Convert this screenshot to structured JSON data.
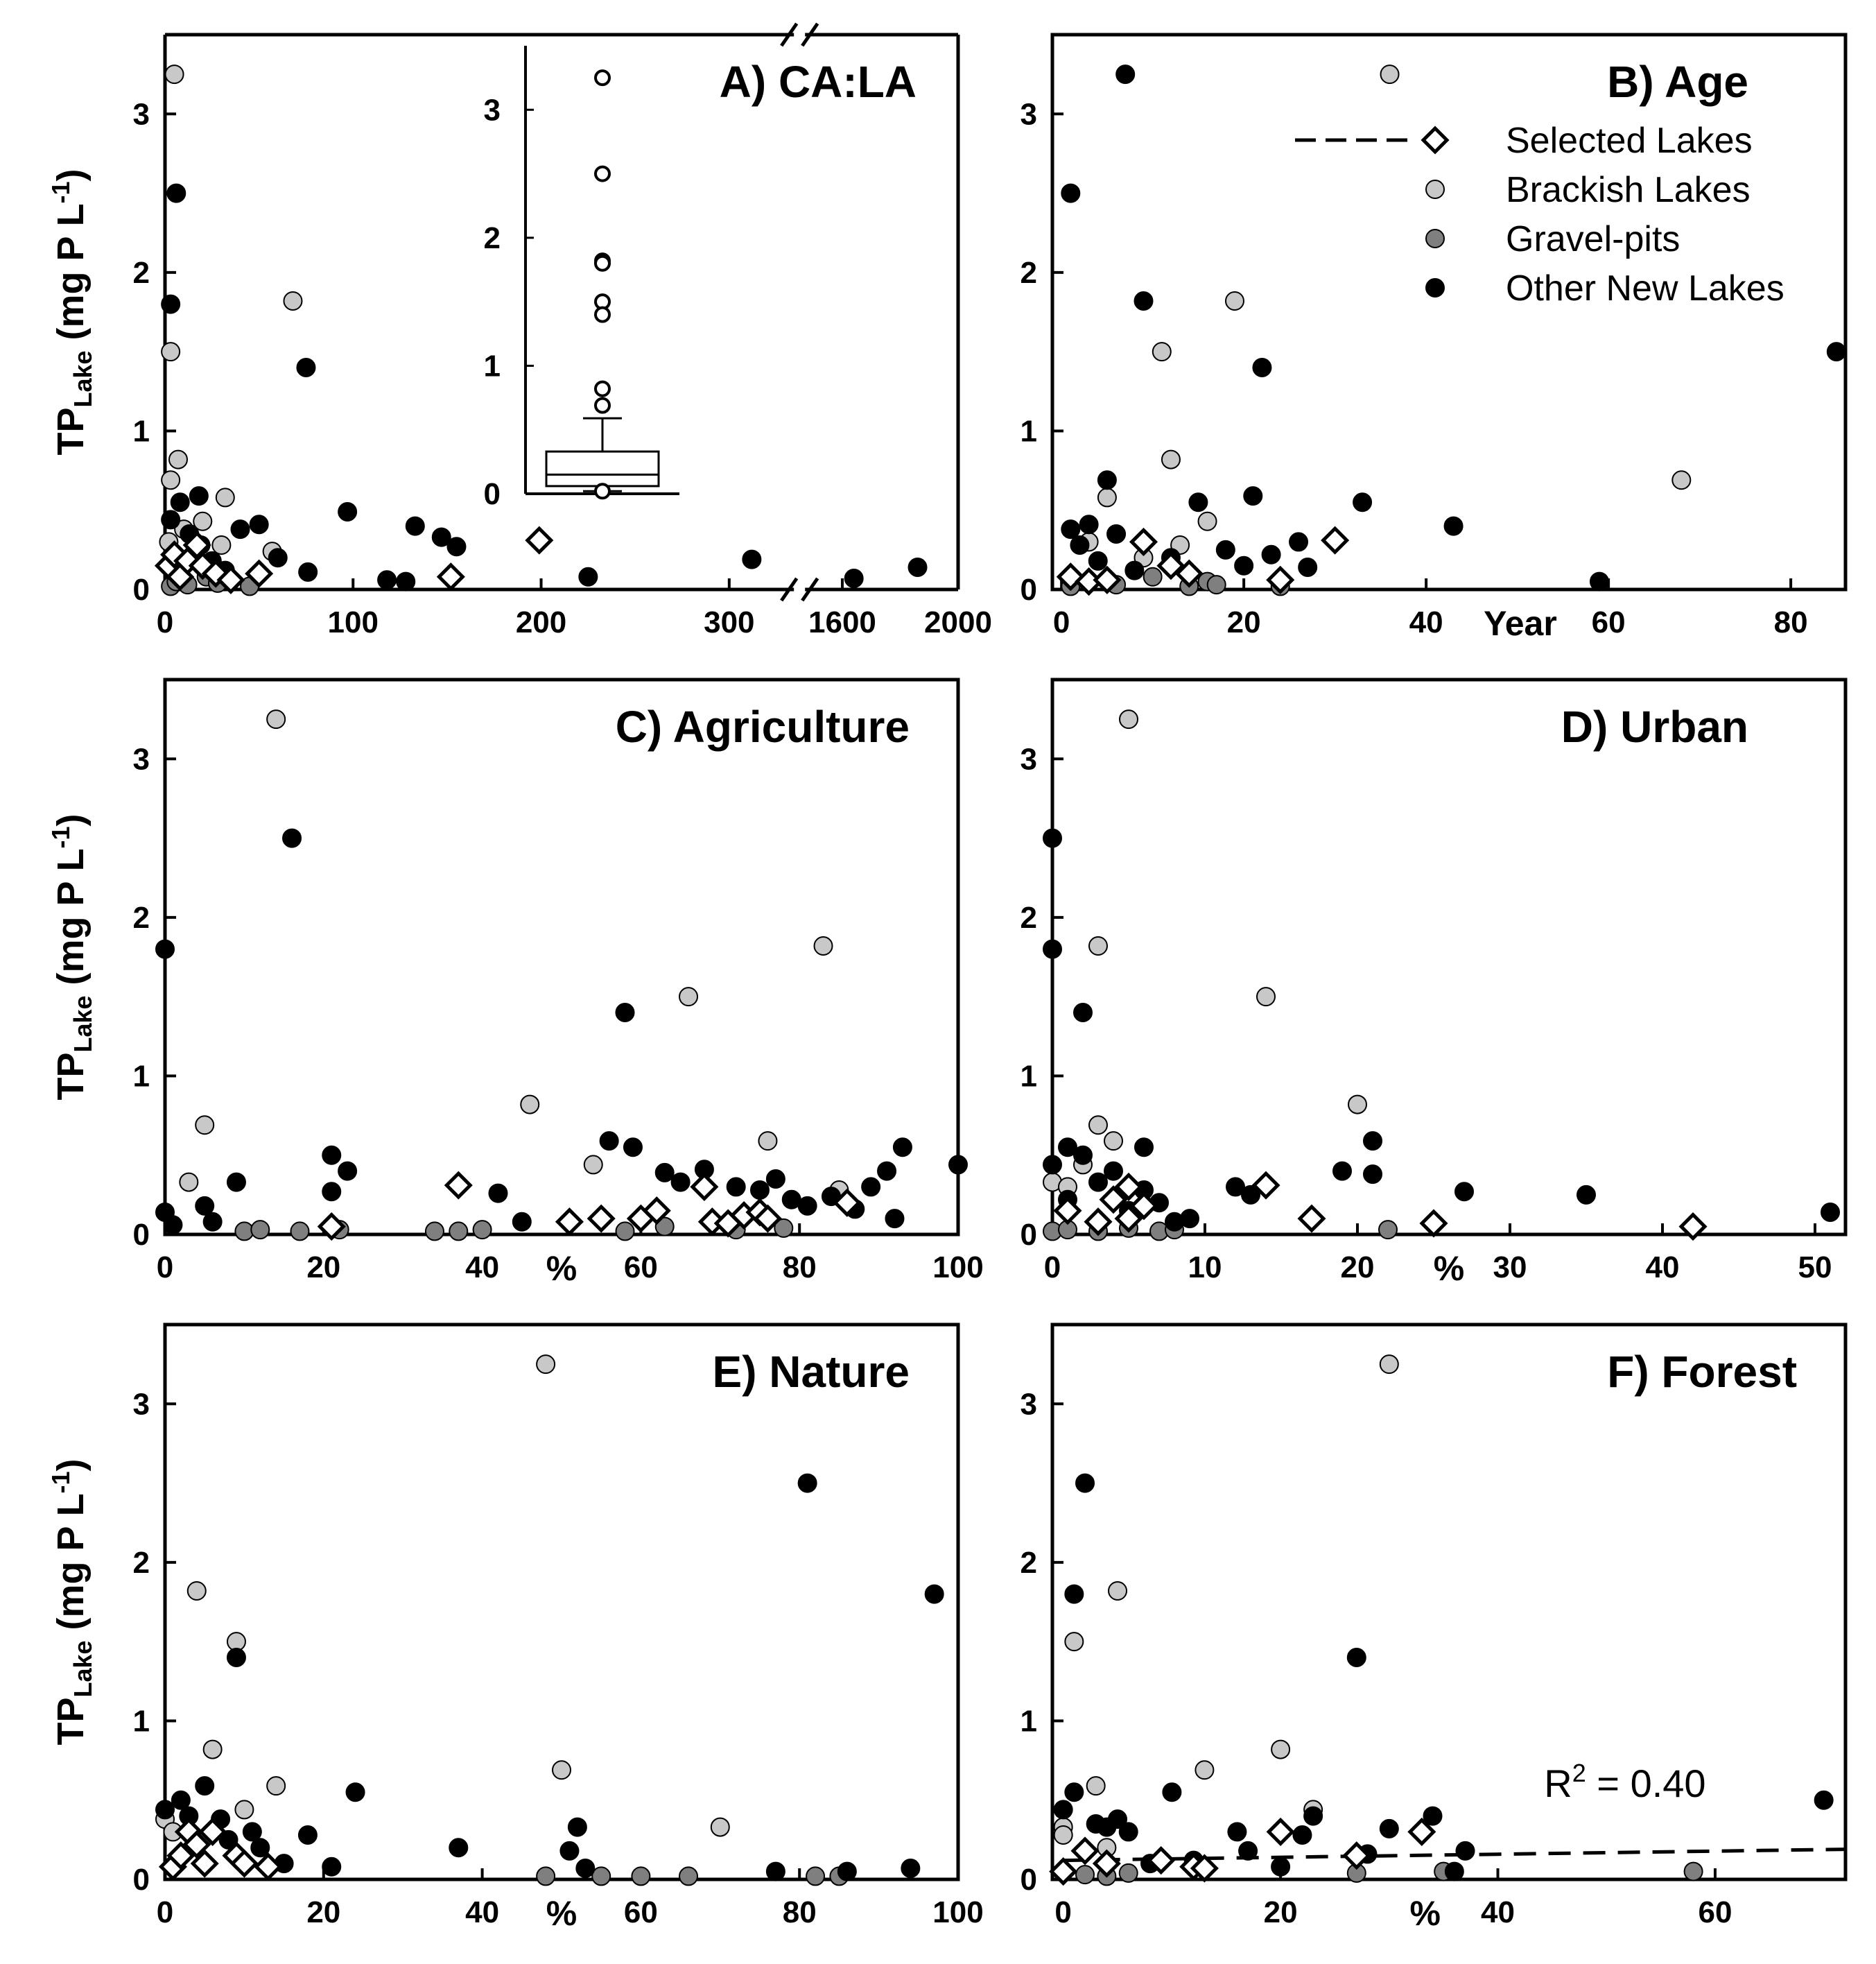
{
  "colors": {
    "selected": "#ffffff",
    "brackish": "#c8c8c8",
    "gravel": "#7f7f7f",
    "other": "#000000"
  },
  "y_axis": {
    "label_main": "TP",
    "label_sub": "Lake",
    "label_unit_open": " (mg P L",
    "label_unit_exp": "-1",
    "label_unit_close": ")",
    "ticks": [
      "0",
      "1",
      "2",
      "3"
    ]
  },
  "legend": {
    "items": [
      {
        "key": "selected",
        "label": "Selected Lakes"
      },
      {
        "key": "brackish",
        "label": "Brackish Lakes"
      },
      {
        "key": "gravel",
        "label": "Gravel-pits"
      },
      {
        "key": "other",
        "label": "Other New Lakes"
      }
    ]
  },
  "chart_data": [
    {
      "id": "A",
      "type": "scatter",
      "title": "A) CA:LA",
      "xlabel": "",
      "ylabel": "TP_Lake (mg P L-1)",
      "ylim": [
        0,
        3.5
      ],
      "x_break": {
        "before": [
          0,
          330
        ],
        "after": [
          1500,
          2000
        ]
      },
      "xticks": [
        0,
        100,
        200,
        300,
        1600,
        2000
      ],
      "xtick_labels": [
        "0",
        "100",
        "200",
        "300",
        "1600",
        "2000"
      ],
      "yticks": [
        0,
        1,
        2,
        3
      ],
      "series": [
        {
          "name": "Brackish Lakes",
          "x": [
            5,
            3,
            3,
            7,
            2,
            68,
            32,
            20,
            10,
            57,
            30
          ],
          "y": [
            3.25,
            1.5,
            0.69,
            0.82,
            0.3,
            1.82,
            0.58,
            0.43,
            0.38,
            0.24,
            0.28
          ]
        },
        {
          "name": "Gravel-pits",
          "x": [
            3,
            6,
            12,
            22,
            28,
            45
          ],
          "y": [
            0.02,
            0.05,
            0.03,
            0.08,
            0.04,
            0.02
          ]
        },
        {
          "name": "Other New Lakes",
          "x": [
            6,
            3,
            75,
            97,
            133,
            147,
            155,
            40,
            50,
            18,
            3,
            8,
            13,
            19,
            60,
            25,
            32,
            76,
            118,
            128,
            225,
            312,
            1640,
            1860
          ],
          "y": [
            2.5,
            1.8,
            1.4,
            0.49,
            0.4,
            0.33,
            0.27,
            0.38,
            0.41,
            0.59,
            0.44,
            0.55,
            0.35,
            0.28,
            0.2,
            0.18,
            0.12,
            0.11,
            0.06,
            0.05,
            0.08,
            0.19,
            0.07,
            0.14
          ]
        },
        {
          "name": "Selected Lakes",
          "x": [
            2,
            5,
            8,
            12,
            17,
            20,
            27,
            35,
            50,
            152,
            199
          ],
          "y": [
            0.15,
            0.22,
            0.08,
            0.18,
            0.28,
            0.15,
            0.1,
            0.06,
            0.1,
            0.08,
            0.31
          ]
        }
      ],
      "inset": {
        "type": "box",
        "yticks": [
          0,
          1,
          2,
          3
        ],
        "q1": 0.06,
        "median": 0.15,
        "q3": 0.33,
        "whisker_low": 0.02,
        "whisker_high": 0.59,
        "outliers": [
          3.25,
          2.5,
          1.82,
          1.8,
          1.5,
          1.4,
          0.82,
          0.69,
          0.02
        ]
      }
    },
    {
      "id": "B",
      "type": "scatter",
      "title": "B) Age",
      "xlabel": "Year",
      "ylabel": "TP_Lake (mg P L-1)",
      "xlim": [
        -1,
        86
      ],
      "ylim": [
        0,
        3.5
      ],
      "xticks": [
        0,
        20,
        40,
        60,
        80
      ],
      "xtick_labels": [
        "0",
        "20",
        "40",
        "60",
        "80"
      ],
      "yticks": [
        0,
        1,
        2,
        3
      ],
      "series": [
        {
          "name": "Brackish Lakes",
          "x": [
            36,
            11,
            19,
            12,
            68,
            5,
            16,
            13,
            3,
            9
          ],
          "y": [
            3.25,
            1.5,
            1.82,
            0.82,
            0.69,
            0.58,
            0.43,
            0.28,
            0.3,
            0.2
          ]
        },
        {
          "name": "Gravel-pits",
          "x": [
            1,
            3,
            6,
            10,
            14,
            16,
            17,
            24
          ],
          "y": [
            0.02,
            0.05,
            0.03,
            0.08,
            0.02,
            0.05,
            0.03,
            0.02
          ]
        },
        {
          "name": "Other New Lakes",
          "x": [
            7,
            1,
            9,
            22,
            85,
            21,
            33,
            43,
            5,
            15,
            59,
            1,
            3,
            6,
            18,
            2,
            23,
            26,
            4,
            20,
            8,
            27,
            12,
            14
          ],
          "y": [
            3.25,
            2.5,
            1.82,
            1.4,
            1.5,
            0.59,
            0.55,
            0.4,
            0.69,
            0.55,
            0.05,
            0.38,
            0.41,
            0.35,
            0.25,
            0.28,
            0.22,
            0.3,
            0.18,
            0.15,
            0.12,
            0.14,
            0.2,
            0.1
          ]
        },
        {
          "name": "Selected Lakes",
          "x": [
            1,
            3,
            5,
            9,
            12,
            14,
            24,
            30
          ],
          "y": [
            0.08,
            0.05,
            0.06,
            0.3,
            0.15,
            0.1,
            0.06,
            0.31
          ]
        }
      ]
    },
    {
      "id": "C",
      "type": "scatter",
      "title": "C) Agriculture",
      "xlabel": "%",
      "ylabel": "TP_Lake (mg P L-1)",
      "xlim": [
        0,
        100
      ],
      "ylim": [
        0,
        3.5
      ],
      "xticks": [
        0,
        20,
        40,
        60,
        80,
        100
      ],
      "xtick_labels": [
        "0",
        "20",
        "40",
        "60",
        "80",
        "100"
      ],
      "yticks": [
        0,
        1,
        2,
        3
      ],
      "series": [
        {
          "name": "Brackish Lakes",
          "x": [
            14,
            83,
            66,
            46,
            5,
            76,
            54,
            85,
            3
          ],
          "y": [
            3.25,
            1.82,
            1.5,
            0.82,
            0.69,
            0.59,
            0.44,
            0.28,
            0.33
          ]
        },
        {
          "name": "Gravel-pits",
          "x": [
            10,
            12,
            17,
            22,
            34,
            37,
            40,
            58,
            63,
            72,
            78
          ],
          "y": [
            0.02,
            0.03,
            0.02,
            0.03,
            0.02,
            0.02,
            0.03,
            0.02,
            0.05,
            0.03,
            0.04
          ]
        },
        {
          "name": "Other New Lakes",
          "x": [
            0,
            16,
            58,
            56,
            59,
            93,
            21,
            23,
            9,
            5,
            0,
            100,
            63,
            65,
            68,
            72,
            75,
            77,
            79,
            81,
            84,
            87,
            89,
            91,
            1,
            6,
            21,
            42,
            45,
            92
          ],
          "y": [
            1.8,
            2.5,
            1.4,
            0.59,
            0.55,
            0.55,
            0.5,
            0.4,
            0.33,
            0.18,
            0.14,
            0.44,
            0.39,
            0.33,
            0.41,
            0.3,
            0.28,
            0.35,
            0.22,
            0.18,
            0.24,
            0.16,
            0.3,
            0.4,
            0.06,
            0.08,
            0.27,
            0.26,
            0.08,
            0.1
          ]
        },
        {
          "name": "Selected Lakes",
          "x": [
            21,
            37,
            51,
            55,
            60,
            62,
            68,
            69,
            71,
            73,
            75,
            76,
            86
          ],
          "y": [
            0.05,
            0.31,
            0.08,
            0.1,
            0.1,
            0.15,
            0.3,
            0.08,
            0.07,
            0.12,
            0.14,
            0.1,
            0.2
          ]
        }
      ]
    },
    {
      "id": "D",
      "type": "scatter",
      "title": "D) Urban",
      "xlabel": "%",
      "ylabel": "TP_Lake (mg P L-1)",
      "xlim": [
        0,
        52
      ],
      "ylim": [
        0,
        3.5
      ],
      "xticks": [
        0,
        10,
        20,
        30,
        40,
        50
      ],
      "xtick_labels": [
        "0",
        "10",
        "20",
        "30",
        "40",
        "50"
      ],
      "yticks": [
        0,
        1,
        2,
        3
      ],
      "series": [
        {
          "name": "Brackish Lakes",
          "x": [
            5,
            3,
            14,
            20,
            3,
            4,
            0,
            1,
            2
          ],
          "y": [
            3.25,
            1.82,
            1.5,
            0.82,
            0.69,
            0.59,
            0.33,
            0.3,
            0.44
          ]
        },
        {
          "name": "Gravel-pits",
          "x": [
            0,
            1,
            3,
            5,
            7,
            8,
            22
          ],
          "y": [
            0.02,
            0.03,
            0.02,
            0.04,
            0.02,
            0.03,
            0.03
          ]
        },
        {
          "name": "Other New Lakes",
          "x": [
            0,
            0,
            2,
            21,
            21,
            0,
            1,
            6,
            19,
            12,
            13,
            27,
            35,
            51,
            2,
            3,
            4,
            6,
            7,
            8,
            9,
            1,
            5
          ],
          "y": [
            2.5,
            1.8,
            1.4,
            0.59,
            0.38,
            0.44,
            0.55,
            0.55,
            0.4,
            0.3,
            0.25,
            0.27,
            0.25,
            0.14,
            0.5,
            0.33,
            0.4,
            0.28,
            0.2,
            0.08,
            0.1,
            0.22,
            0.15
          ]
        },
        {
          "name": "Selected Lakes",
          "x": [
            1,
            3,
            4,
            5,
            5,
            6,
            14,
            17,
            25,
            42
          ],
          "y": [
            0.15,
            0.08,
            0.22,
            0.3,
            0.1,
            0.18,
            0.31,
            0.1,
            0.07,
            0.05
          ]
        }
      ]
    },
    {
      "id": "E",
      "type": "scatter",
      "title": "E) Nature",
      "xlabel": "%",
      "ylabel": "TP_Lake (mg P L-1)",
      "xlim": [
        0,
        100
      ],
      "ylim": [
        0,
        3.5
      ],
      "xticks": [
        0,
        20,
        40,
        60,
        80,
        100
      ],
      "xtick_labels": [
        "0",
        "20",
        "40",
        "60",
        "80",
        "100"
      ],
      "yticks": [
        0,
        1,
        2,
        3
      ],
      "series": [
        {
          "name": "Brackish Lakes",
          "x": [
            48,
            4,
            9,
            6,
            50,
            70,
            14,
            10,
            0,
            1
          ],
          "y": [
            3.25,
            1.82,
            1.5,
            0.82,
            0.69,
            0.33,
            0.59,
            0.44,
            0.38,
            0.3
          ]
        },
        {
          "name": "Gravel-pits",
          "x": [
            48,
            55,
            60,
            66,
            82,
            85
          ],
          "y": [
            0.02,
            0.02,
            0.02,
            0.02,
            0.02,
            0.02
          ]
        },
        {
          "name": "Other New Lakes",
          "x": [
            81,
            97,
            9,
            5,
            24,
            37,
            52,
            51,
            0,
            2,
            3,
            7,
            11,
            18,
            21,
            77,
            86,
            94,
            53,
            12,
            8,
            15
          ],
          "y": [
            2.5,
            1.8,
            1.4,
            0.59,
            0.55,
            0.2,
            0.33,
            0.18,
            0.44,
            0.5,
            0.4,
            0.38,
            0.3,
            0.28,
            0.08,
            0.05,
            0.05,
            0.07,
            0.07,
            0.2,
            0.25,
            0.1
          ]
        },
        {
          "name": "Selected Lakes",
          "x": [
            1,
            2,
            3,
            4,
            5,
            6,
            9,
            10,
            13
          ],
          "y": [
            0.08,
            0.15,
            0.3,
            0.22,
            0.1,
            0.3,
            0.15,
            0.1,
            0.08
          ]
        }
      ]
    },
    {
      "id": "F",
      "type": "scatter",
      "title": "F) Forest",
      "xlabel": "%",
      "ylabel": "TP_Lake (mg P L-1)",
      "xlim": [
        -1,
        72
      ],
      "ylim": [
        0,
        3.5
      ],
      "xticks": [
        0,
        20,
        40,
        60
      ],
      "xtick_labels": [
        "0",
        "20",
        "40",
        "60"
      ],
      "yticks": [
        0,
        1,
        2,
        3
      ],
      "annotation": "R",
      "annotation_sup": "2",
      "annotation_tail": " = 0.40",
      "trend_line": {
        "x": [
          0,
          72
        ],
        "y": [
          0.12,
          0.19
        ]
      },
      "series": [
        {
          "name": "Brackish Lakes",
          "x": [
            30,
            5,
            1,
            20,
            13,
            3,
            23,
            0,
            0,
            4
          ],
          "y": [
            3.25,
            1.82,
            1.5,
            0.82,
            0.69,
            0.59,
            0.44,
            0.33,
            0.28,
            0.2
          ]
        },
        {
          "name": "Gravel-pits",
          "x": [
            2,
            4,
            6,
            27,
            35,
            58
          ],
          "y": [
            0.03,
            0.02,
            0.04,
            0.04,
            0.05,
            0.05
          ]
        },
        {
          "name": "Other New Lakes",
          "x": [
            2,
            1,
            27,
            70,
            1,
            10,
            0,
            3,
            4,
            5,
            6,
            8,
            12,
            16,
            17,
            20,
            22,
            23,
            30,
            34,
            36,
            37,
            28
          ],
          "y": [
            2.5,
            1.8,
            1.4,
            0.5,
            0.55,
            0.55,
            0.44,
            0.35,
            0.33,
            0.38,
            0.3,
            0.1,
            0.12,
            0.3,
            0.18,
            0.08,
            0.28,
            0.4,
            0.32,
            0.4,
            0.05,
            0.18,
            0.16
          ]
        },
        {
          "name": "Selected Lakes",
          "x": [
            0,
            2,
            4,
            9,
            12,
            13,
            20,
            27,
            33
          ],
          "y": [
            0.05,
            0.18,
            0.1,
            0.12,
            0.08,
            0.07,
            0.3,
            0.15,
            0.3
          ]
        }
      ]
    }
  ]
}
